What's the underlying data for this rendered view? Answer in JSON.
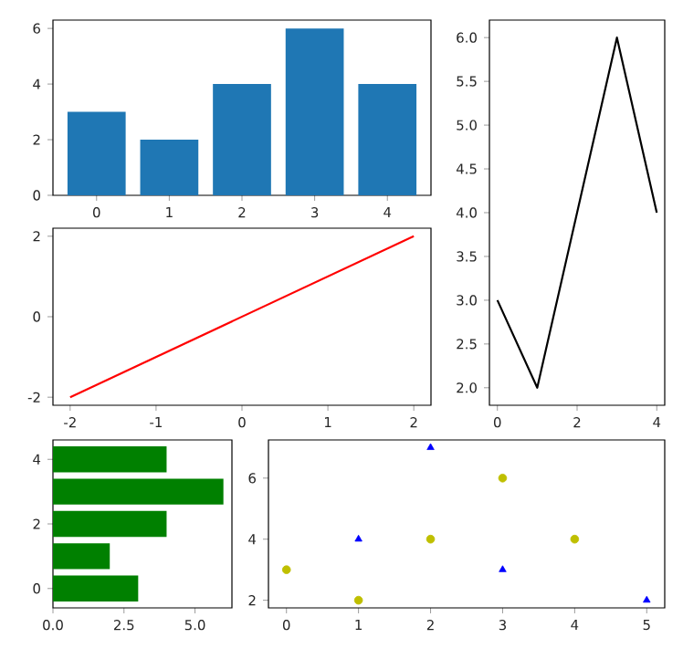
{
  "chart_data": [
    {
      "type": "bar",
      "categories": [
        "0",
        "1",
        "2",
        "3",
        "4"
      ],
      "values": [
        3,
        2,
        4,
        6,
        4
      ],
      "color": "#1f77b4",
      "ylim": [
        0,
        6.3
      ],
      "yticks": [
        0,
        2,
        4,
        6
      ]
    },
    {
      "type": "line",
      "x": [
        0,
        1,
        2,
        3,
        4
      ],
      "values": [
        3,
        2,
        4,
        6,
        4
      ],
      "color": "#000000",
      "xlim": [
        -0.2,
        4.2
      ],
      "ylim": [
        1.8,
        6.2
      ],
      "xticks": [
        0,
        2,
        4
      ],
      "yticks": [
        {
          "value": 2,
          "label": "2.0"
        },
        {
          "value": 2.5,
          "label": "2.5"
        },
        {
          "value": 3,
          "label": "3.0"
        },
        {
          "value": 3.5,
          "label": "3.5"
        },
        {
          "value": 4,
          "label": "4.0"
        },
        {
          "value": 4.5,
          "label": "4.5"
        },
        {
          "value": 5,
          "label": "5.0"
        },
        {
          "value": 5.5,
          "label": "5.5"
        },
        {
          "value": 6,
          "label": "6.0"
        }
      ]
    },
    {
      "type": "line",
      "x": [
        -2,
        2
      ],
      "values": [
        -2,
        2
      ],
      "color": "#ff0000",
      "xlim": [
        -2.2,
        2.2
      ],
      "ylim": [
        -2.2,
        2.2
      ],
      "xticks": [
        -2,
        -1,
        0,
        1,
        2
      ],
      "yticks": [
        -2,
        0,
        2
      ]
    },
    {
      "type": "bar",
      "orientation": "horizontal",
      "categories": [
        "4",
        null,
        "2",
        null,
        "0"
      ],
      "values": [
        4,
        6,
        4,
        2,
        3
      ],
      "color": "#008000",
      "xlim": [
        0,
        6.3
      ],
      "xticks": [
        {
          "value": 0,
          "label": "0.0"
        },
        {
          "value": 2.5,
          "label": "2.5"
        },
        {
          "value": 5,
          "label": "5.0"
        }
      ]
    },
    {
      "type": "scatter",
      "xlim": [
        -0.25,
        5.25
      ],
      "ylim": [
        1.75,
        7.25
      ],
      "xticks": [
        0,
        1,
        2,
        3,
        4,
        5
      ],
      "yticks": [
        2,
        4,
        6
      ],
      "series": [
        {
          "x": [
            0,
            1,
            2,
            3,
            4
          ],
          "values": [
            3,
            2,
            4,
            6,
            4
          ],
          "color": "#bfbf00",
          "marker": "circle"
        },
        {
          "x": [
            1,
            2,
            3,
            5
          ],
          "values": [
            4,
            7,
            3,
            2
          ],
          "color": "#0000ff",
          "marker": "triangle"
        }
      ]
    }
  ]
}
